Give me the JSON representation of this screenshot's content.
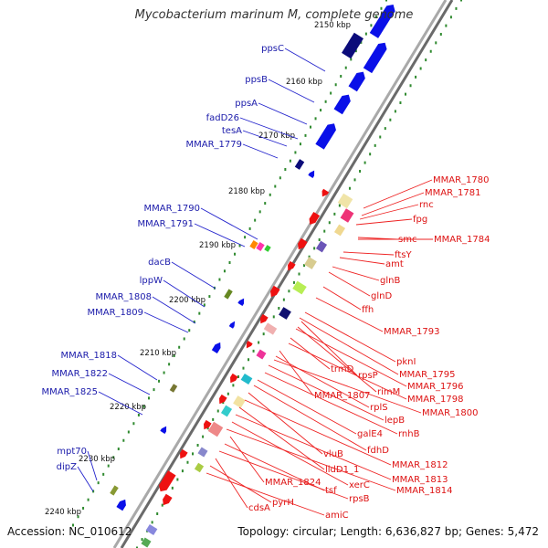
{
  "title": "Mycobacterium marinum M, complete genome",
  "accession": "Accession: NC_010612",
  "summary": "Topology: circular; Length: 6,636,827 bp; Genes: 5,472",
  "colors": {
    "forward_gene": "#0a10e8",
    "forward_dark": "#0b0b7a",
    "reverse_gene": "#ee1111",
    "forward_label": "#1a1aaa",
    "reverse_label": "#dd1111",
    "backbone": "#888888",
    "tick_dot": "#2f8a2f"
  },
  "ticks": [
    "2150 kbp",
    "2160 kbp",
    "2170 kbp",
    "2180 kbp",
    "2190 kbp",
    "2200 kbp",
    "2210 kbp",
    "2220 kbp",
    "2230 kbp",
    "2240 kbp"
  ],
  "forward_labels": [
    "ppsC",
    "ppsB",
    "ppsA",
    "fadD26",
    "tesA",
    "MMAR_1779",
    "MMAR_1790",
    "MMAR_1791",
    "dacB",
    "lppW",
    "MMAR_1808",
    "MMAR_1809",
    "MMAR_1818",
    "MMAR_1822",
    "MMAR_1825",
    "mpt70",
    "dipZ"
  ],
  "reverse_labels": [
    "MMAR_1780",
    "MMAR_1781",
    "rnc",
    "fpg",
    "smc",
    "MMAR_1784",
    "ftsY",
    "amt",
    "glnB",
    "glnD",
    "ffh",
    "MMAR_1793",
    "pknI",
    "MMAR_1795",
    "rpsP",
    "rimM",
    "MMAR_1796",
    "trmD",
    "MMAR_1798",
    "MMAR_1807",
    "rplS",
    "MMAR_1800",
    "lepB",
    "rnhB",
    "galE4",
    "fdhD",
    "vluB",
    "MMAR_1812",
    "lldD1_1",
    "MMAR_1813",
    "xerC",
    "MMAR_1814",
    "MMAR_1824",
    "tsf",
    "rpsB",
    "cdsA",
    "pyrH",
    "amiC"
  ]
}
